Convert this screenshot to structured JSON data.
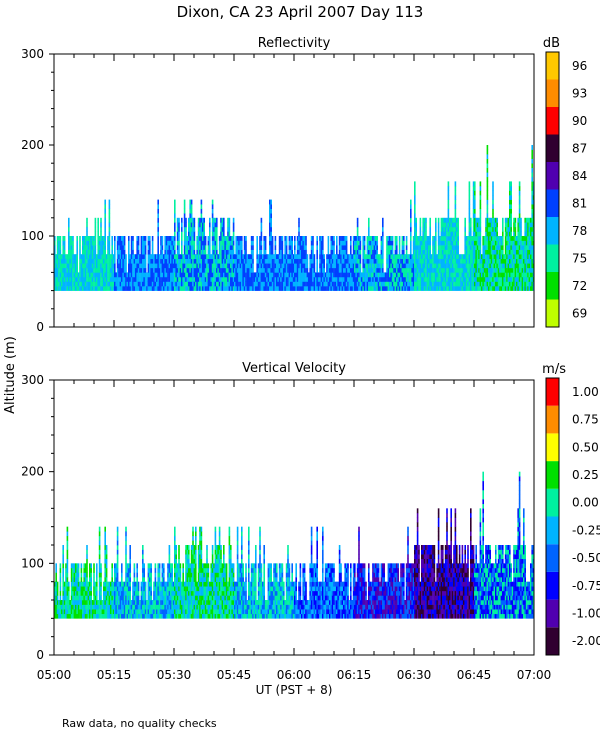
{
  "title": "Dixon, CA 23 April 2007  Day 113",
  "y_axis_label": "Altitude (m)",
  "x_axis_label": "UT  (PST + 8)",
  "footer_note": "Raw data, no quality checks",
  "x_ticks": [
    "05:00",
    "05:15",
    "05:30",
    "05:45",
    "06:00",
    "06:15",
    "06:30",
    "06:45",
    "07:00"
  ],
  "chart_data": [
    {
      "type": "heatmap",
      "title": "Reflectivity",
      "colorbar_unit": "dB",
      "xlim": [
        "05:00",
        "07:00"
      ],
      "ylim": [
        0,
        300
      ],
      "y_ticks": [
        0,
        100,
        200,
        300
      ],
      "colorbar": {
        "labels": [
          "69",
          "72",
          "75",
          "78",
          "81",
          "84",
          "87",
          "90",
          "93",
          "96"
        ],
        "colors": [
          "#bfff00",
          "#00e000",
          "#00f0a0",
          "#00b4ff",
          "#0040ff",
          "#5000b0",
          "#300030",
          "#ff0000",
          "#ff8c00",
          "#ffc800"
        ]
      },
      "series": [
        {
          "x_start": "05:00",
          "x_end": "05:15",
          "range_bottom": 40,
          "range_top": 100,
          "dominant": [
            "75",
            "78"
          ],
          "peaks": [
            120,
            140
          ]
        },
        {
          "x_start": "05:15",
          "x_end": "05:30",
          "range_bottom": 40,
          "range_top": 100,
          "dominant": [
            "78",
            "81"
          ],
          "peaks": [
            120,
            140
          ]
        },
        {
          "x_start": "05:30",
          "x_end": "05:45",
          "range_bottom": 40,
          "range_top": 120,
          "dominant": [
            "75",
            "78",
            "81"
          ],
          "peaks": [
            140
          ]
        },
        {
          "x_start": "05:45",
          "x_end": "06:00",
          "range_bottom": 40,
          "range_top": 100,
          "dominant": [
            "78",
            "81"
          ],
          "peaks": [
            120,
            140
          ]
        },
        {
          "x_start": "06:00",
          "x_end": "06:15",
          "range_bottom": 40,
          "range_top": 100,
          "dominant": [
            "78",
            "81"
          ],
          "peaks": [
            120,
            140
          ]
        },
        {
          "x_start": "06:15",
          "x_end": "06:30",
          "range_bottom": 40,
          "range_top": 100,
          "dominant": [
            "75",
            "78",
            "81"
          ],
          "peaks": [
            120,
            140
          ]
        },
        {
          "x_start": "06:30",
          "x_end": "06:45",
          "range_bottom": 40,
          "range_top": 120,
          "dominant": [
            "75",
            "78"
          ],
          "peaks": [
            160
          ]
        },
        {
          "x_start": "06:45",
          "x_end": "07:00",
          "range_bottom": 40,
          "range_top": 120,
          "dominant": [
            "72",
            "75",
            "78"
          ],
          "peaks": [
            160,
            200
          ]
        }
      ]
    },
    {
      "type": "heatmap",
      "title": "Vertical Velocity",
      "colorbar_unit": "m/s",
      "xlim": [
        "05:00",
        "07:00"
      ],
      "ylim": [
        0,
        300
      ],
      "y_ticks": [
        0,
        100,
        200,
        300
      ],
      "colorbar": {
        "labels": [
          "-2.00",
          "-1.00",
          "-0.75",
          "-0.50",
          "-0.25",
          "0.00",
          "0.25",
          "0.50",
          "0.75",
          "1.00"
        ],
        "colors": [
          "#300030",
          "#5000b0",
          "#0000ff",
          "#0064ff",
          "#00b4ff",
          "#00f0a0",
          "#00e000",
          "#ffff00",
          "#ff8c00",
          "#ff0000"
        ]
      },
      "series": [
        {
          "x_start": "05:00",
          "x_end": "05:15",
          "range_bottom": 40,
          "range_top": 100,
          "dominant": [
            "0.00",
            "0.25",
            "-0.25"
          ],
          "peaks": [
            120,
            140
          ]
        },
        {
          "x_start": "05:15",
          "x_end": "05:30",
          "range_bottom": 40,
          "range_top": 100,
          "dominant": [
            "0.00",
            "-0.25",
            "-0.50"
          ],
          "peaks": [
            120,
            140
          ]
        },
        {
          "x_start": "05:30",
          "x_end": "05:45",
          "range_bottom": 40,
          "range_top": 120,
          "dominant": [
            "0.25",
            "0.00",
            "-0.25"
          ],
          "peaks": [
            140
          ]
        },
        {
          "x_start": "05:45",
          "x_end": "06:00",
          "range_bottom": 40,
          "range_top": 100,
          "dominant": [
            "0.00",
            "-0.25",
            "-0.50"
          ],
          "peaks": [
            120,
            140
          ]
        },
        {
          "x_start": "06:00",
          "x_end": "06:15",
          "range_bottom": 40,
          "range_top": 100,
          "dominant": [
            "-0.25",
            "-0.50",
            "-0.75"
          ],
          "peaks": [
            120,
            140
          ]
        },
        {
          "x_start": "06:15",
          "x_end": "06:30",
          "range_bottom": 40,
          "range_top": 100,
          "dominant": [
            "-0.50",
            "-0.75",
            "-1.00"
          ],
          "peaks": [
            120,
            140
          ]
        },
        {
          "x_start": "06:30",
          "x_end": "06:45",
          "range_bottom": 40,
          "range_top": 120,
          "dominant": [
            "-0.75",
            "-1.00",
            "-2.00"
          ],
          "peaks": [
            160
          ]
        },
        {
          "x_start": "06:45",
          "x_end": "07:00",
          "range_bottom": 40,
          "range_top": 120,
          "dominant": [
            "-0.75",
            "-0.50",
            "0.00"
          ],
          "peaks": [
            160,
            200
          ]
        }
      ]
    }
  ]
}
